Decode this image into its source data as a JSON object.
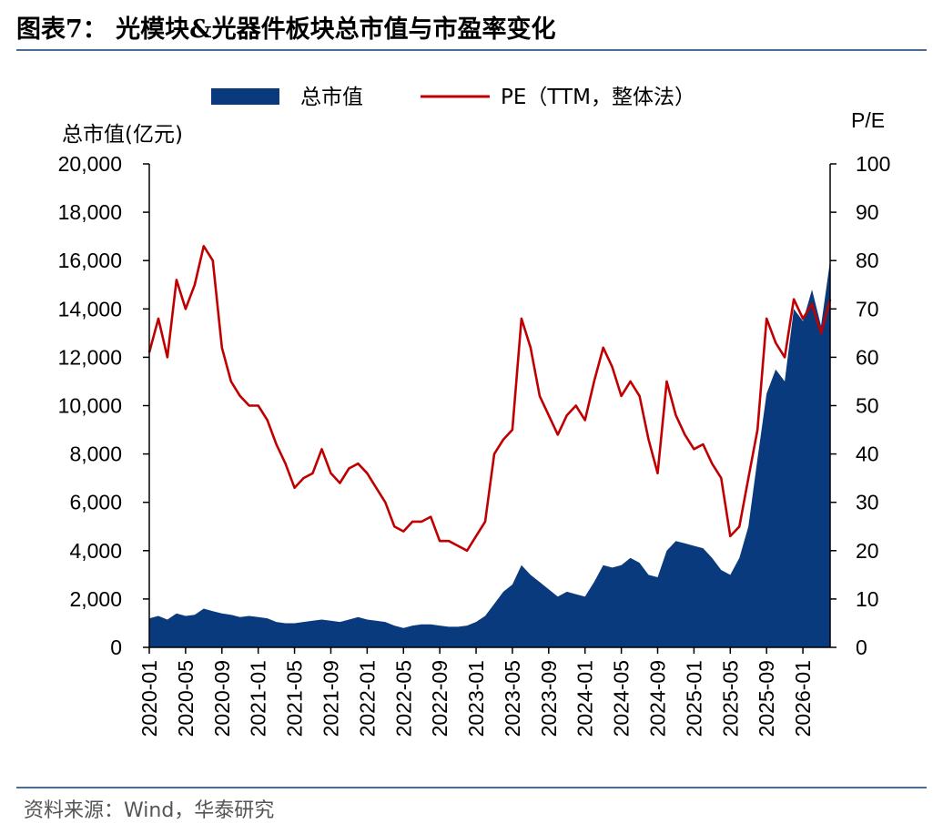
{
  "header": {
    "title": "图表7：  光模块&光器件板块总市值与市盈率变化",
    "source": "资料来源：Wind，华泰研究"
  },
  "colors": {
    "market_cap": "#0a3a7e",
    "pe": "#c00000",
    "rule": "#4a6e96"
  },
  "chart_data": {
    "type": "area",
    "legend": {
      "placement": "top-center",
      "entries": [
        "总市值",
        "PE（TTM，整体法）"
      ]
    },
    "y_left": {
      "label": "总市值(亿元)",
      "range": [
        0,
        20000
      ],
      "ticks": [
        "0",
        "2,000",
        "4,000",
        "6,000",
        "8,000",
        "10,000",
        "12,000",
        "14,000",
        "16,000",
        "18,000",
        "20,000"
      ]
    },
    "y_right": {
      "label": "P/E",
      "range": [
        0,
        100
      ],
      "ticks": [
        "0",
        "10",
        "20",
        "30",
        "40",
        "50",
        "60",
        "70",
        "80",
        "90",
        "100"
      ]
    },
    "x_ticks": [
      "2020-01",
      "2020-05",
      "2020-09",
      "2021-01",
      "2021-05",
      "2021-09",
      "2022-01",
      "2022-05",
      "2022-09",
      "2023-01",
      "2023-05",
      "2023-09",
      "2024-01",
      "2024-05",
      "2024-09",
      "2025-01",
      "2025-05",
      "2025-09",
      "2026-01"
    ],
    "x_range": [
      "2020-01",
      "2026-04"
    ],
    "series": [
      {
        "name": "总市值",
        "type": "area",
        "axis": "left",
        "points": [
          [
            "2020-01",
            1200
          ],
          [
            "2020-02",
            1300
          ],
          [
            "2020-03",
            1150
          ],
          [
            "2020-04",
            1400
          ],
          [
            "2020-05",
            1300
          ],
          [
            "2020-06",
            1350
          ],
          [
            "2020-07",
            1600
          ],
          [
            "2020-08",
            1500
          ],
          [
            "2020-09",
            1400
          ],
          [
            "2020-10",
            1350
          ],
          [
            "2020-11",
            1250
          ],
          [
            "2020-12",
            1300
          ],
          [
            "2021-01",
            1250
          ],
          [
            "2021-02",
            1200
          ],
          [
            "2021-03",
            1050
          ],
          [
            "2021-04",
            1000
          ],
          [
            "2021-05",
            1000
          ],
          [
            "2021-06",
            1050
          ],
          [
            "2021-07",
            1100
          ],
          [
            "2021-08",
            1150
          ],
          [
            "2021-09",
            1100
          ],
          [
            "2021-10",
            1050
          ],
          [
            "2021-11",
            1150
          ],
          [
            "2021-12",
            1250
          ],
          [
            "2022-01",
            1150
          ],
          [
            "2022-02",
            1100
          ],
          [
            "2022-03",
            1050
          ],
          [
            "2022-04",
            900
          ],
          [
            "2022-05",
            800
          ],
          [
            "2022-06",
            900
          ],
          [
            "2022-07",
            950
          ],
          [
            "2022-08",
            950
          ],
          [
            "2022-09",
            900
          ],
          [
            "2022-10",
            850
          ],
          [
            "2022-11",
            850
          ],
          [
            "2022-12",
            900
          ],
          [
            "2023-01",
            1050
          ],
          [
            "2023-02",
            1300
          ],
          [
            "2023-03",
            1800
          ],
          [
            "2023-04",
            2300
          ],
          [
            "2023-05",
            2600
          ],
          [
            "2023-06",
            3400
          ],
          [
            "2023-07",
            3000
          ],
          [
            "2023-08",
            2700
          ],
          [
            "2023-09",
            2400
          ],
          [
            "2023-10",
            2100
          ],
          [
            "2023-11",
            2300
          ],
          [
            "2023-12",
            2200
          ],
          [
            "2024-01",
            2100
          ],
          [
            "2024-02",
            2700
          ],
          [
            "2024-03",
            3400
          ],
          [
            "2024-04",
            3300
          ],
          [
            "2024-05",
            3400
          ],
          [
            "2024-06",
            3700
          ],
          [
            "2024-07",
            3500
          ],
          [
            "2024-08",
            3000
          ],
          [
            "2024-09",
            2900
          ],
          [
            "2024-10",
            4000
          ],
          [
            "2024-11",
            4400
          ],
          [
            "2024-12",
            4300
          ],
          [
            "2025-01",
            4200
          ],
          [
            "2025-02",
            4100
          ],
          [
            "2025-03",
            3700
          ],
          [
            "2025-04",
            3200
          ],
          [
            "2025-05",
            3000
          ],
          [
            "2025-06",
            3700
          ],
          [
            "2025-07",
            5000
          ],
          [
            "2025-08",
            7800
          ],
          [
            "2025-09",
            10500
          ],
          [
            "2025-10",
            11500
          ],
          [
            "2025-11",
            11000
          ],
          [
            "2025-12",
            14000
          ],
          [
            "2026-01",
            13500
          ],
          [
            "2026-02",
            14800
          ],
          [
            "2026-03",
            13300
          ],
          [
            "2026-04",
            16000
          ]
        ]
      },
      {
        "name": "PE（TTM，整体法）",
        "type": "line",
        "axis": "right",
        "points": [
          [
            "2020-01",
            61
          ],
          [
            "2020-02",
            68
          ],
          [
            "2020-03",
            60
          ],
          [
            "2020-04",
            76
          ],
          [
            "2020-05",
            70
          ],
          [
            "2020-06",
            75
          ],
          [
            "2020-07",
            83
          ],
          [
            "2020-08",
            80
          ],
          [
            "2020-09",
            62
          ],
          [
            "2020-10",
            55
          ],
          [
            "2020-11",
            52
          ],
          [
            "2020-12",
            50
          ],
          [
            "2021-01",
            50
          ],
          [
            "2021-02",
            47
          ],
          [
            "2021-03",
            42
          ],
          [
            "2021-04",
            38
          ],
          [
            "2021-05",
            33
          ],
          [
            "2021-06",
            35
          ],
          [
            "2021-07",
            36
          ],
          [
            "2021-08",
            41
          ],
          [
            "2021-09",
            36
          ],
          [
            "2021-10",
            34
          ],
          [
            "2021-11",
            37
          ],
          [
            "2021-12",
            38
          ],
          [
            "2022-01",
            36
          ],
          [
            "2022-02",
            33
          ],
          [
            "2022-03",
            30
          ],
          [
            "2022-04",
            25
          ],
          [
            "2022-05",
            24
          ],
          [
            "2022-06",
            26
          ],
          [
            "2022-07",
            26
          ],
          [
            "2022-08",
            27
          ],
          [
            "2022-09",
            22
          ],
          [
            "2022-10",
            22
          ],
          [
            "2022-11",
            21
          ],
          [
            "2022-12",
            20
          ],
          [
            "2023-01",
            23
          ],
          [
            "2023-02",
            26
          ],
          [
            "2023-03",
            40
          ],
          [
            "2023-04",
            43
          ],
          [
            "2023-05",
            45
          ],
          [
            "2023-06",
            68
          ],
          [
            "2023-07",
            62
          ],
          [
            "2023-08",
            52
          ],
          [
            "2023-09",
            48
          ],
          [
            "2023-10",
            44
          ],
          [
            "2023-11",
            48
          ],
          [
            "2023-12",
            50
          ],
          [
            "2024-01",
            47
          ],
          [
            "2024-02",
            55
          ],
          [
            "2024-03",
            62
          ],
          [
            "2024-04",
            58
          ],
          [
            "2024-05",
            52
          ],
          [
            "2024-06",
            55
          ],
          [
            "2024-07",
            52
          ],
          [
            "2024-08",
            43
          ],
          [
            "2024-09",
            36
          ],
          [
            "2024-10",
            55
          ],
          [
            "2024-11",
            48
          ],
          [
            "2024-12",
            44
          ],
          [
            "2025-01",
            41
          ],
          [
            "2025-02",
            42
          ],
          [
            "2025-03",
            38
          ],
          [
            "2025-04",
            35
          ],
          [
            "2025-05",
            23
          ],
          [
            "2025-06",
            25
          ],
          [
            "2025-07",
            35
          ],
          [
            "2025-08",
            45
          ],
          [
            "2025-09",
            68
          ],
          [
            "2025-10",
            63
          ],
          [
            "2025-11",
            60
          ],
          [
            "2025-12",
            72
          ],
          [
            "2026-01",
            68
          ],
          [
            "2026-02",
            71
          ],
          [
            "2026-03",
            65
          ],
          [
            "2026-04",
            72
          ]
        ]
      }
    ]
  }
}
